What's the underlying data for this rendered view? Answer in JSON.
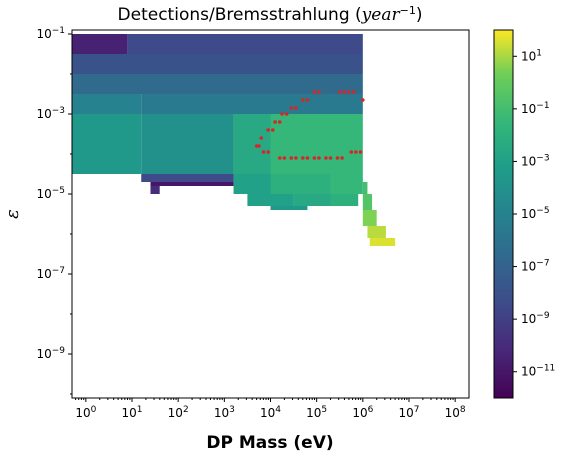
{
  "chart_data": {
    "type": "heatmap",
    "title": "Detections/Bremsstrahlung (",
    "title_math": "year",
    "title_sup": "−1",
    "title_close": ")",
    "xlabel": "DP Mass (eV)",
    "ylabel": "ε",
    "x_scale": "log",
    "y_scale": "log",
    "x_log_range": [
      -0.3,
      8.3
    ],
    "y_log_range": [
      -10.1,
      -0.9
    ],
    "x_ticks": [
      {
        "base": "10",
        "exp": "0"
      },
      {
        "base": "10",
        "exp": "1"
      },
      {
        "base": "10",
        "exp": "2"
      },
      {
        "base": "10",
        "exp": "3"
      },
      {
        "base": "10",
        "exp": "4"
      },
      {
        "base": "10",
        "exp": "5"
      },
      {
        "base": "10",
        "exp": "6"
      },
      {
        "base": "10",
        "exp": "7"
      },
      {
        "base": "10",
        "exp": "8"
      }
    ],
    "y_ticks": [
      {
        "base": "10",
        "exp": "−1"
      },
      {
        "base": "10",
        "exp": "−3"
      },
      {
        "base": "10",
        "exp": "−5"
      },
      {
        "base": "10",
        "exp": "−7"
      },
      {
        "base": "10",
        "exp": "−9"
      }
    ],
    "colorbar": {
      "colormap": "viridis",
      "log_range": [
        -12,
        2
      ],
      "ticks": [
        {
          "base": "10",
          "exp": "1"
        },
        {
          "base": "10",
          "exp": "−1"
        },
        {
          "base": "10",
          "exp": "−3"
        },
        {
          "base": "10",
          "exp": "−5"
        },
        {
          "base": "10",
          "exp": "−7"
        },
        {
          "base": "10",
          "exp": "−9"
        },
        {
          "base": "10",
          "exp": "−11"
        }
      ]
    },
    "heatmap_regions": [
      {
        "x": [
          -0.3,
          0.9
        ],
        "y": [
          -1.5,
          -1.0
        ],
        "log10_value": -10.5
      },
      {
        "x": [
          0.9,
          6.0
        ],
        "y": [
          -1.5,
          -1.0
        ],
        "log10_value": -8.5
      },
      {
        "x": [
          -0.3,
          6.0
        ],
        "y": [
          -2.0,
          -1.5
        ],
        "log10_value": -8.0
      },
      {
        "x": [
          -0.3,
          6.0
        ],
        "y": [
          -2.5,
          -2.0
        ],
        "log10_value": -6.5
      },
      {
        "x": [
          -0.3,
          1.2
        ],
        "y": [
          -3.0,
          -2.5
        ],
        "log10_value": -5.0
      },
      {
        "x": [
          1.2,
          6.0
        ],
        "y": [
          -3.0,
          -2.5
        ],
        "log10_value": -5.5
      },
      {
        "x": [
          -0.3,
          1.2
        ],
        "y": [
          -4.5,
          -3.0
        ],
        "log10_value": -3.5
      },
      {
        "x": [
          1.2,
          3.2
        ],
        "y": [
          -4.5,
          -3.0
        ],
        "log10_value": -4.0
      },
      {
        "x": [
          3.2,
          4.0
        ],
        "y": [
          -4.5,
          -3.0
        ],
        "log10_value": -2.5
      },
      {
        "x": [
          4.0,
          6.0
        ],
        "y": [
          -4.5,
          -3.0
        ],
        "log10_value": -1.5
      },
      {
        "x": [
          1.2,
          3.2
        ],
        "y": [
          -4.7,
          -4.5
        ],
        "log10_value": -8.5
      },
      {
        "x": [
          1.4,
          3.2
        ],
        "y": [
          -4.8,
          -4.7
        ],
        "log10_value": -11.0
      },
      {
        "x": [
          1.4,
          1.6
        ],
        "y": [
          -5.0,
          -4.8
        ],
        "log10_value": -10.0
      },
      {
        "x": [
          3.2,
          4.0
        ],
        "y": [
          -5.0,
          -4.5
        ],
        "log10_value": -3.0
      },
      {
        "x": [
          4.0,
          5.3
        ],
        "y": [
          -5.0,
          -4.5
        ],
        "log10_value": -2.0
      },
      {
        "x": [
          5.3,
          6.0
        ],
        "y": [
          -5.0,
          -4.5
        ],
        "log10_value": -1.5
      },
      {
        "x": [
          3.5,
          4.5
        ],
        "y": [
          -5.3,
          -5.0
        ],
        "log10_value": -3.0
      },
      {
        "x": [
          4.5,
          5.3
        ],
        "y": [
          -5.3,
          -5.0
        ],
        "log10_value": -2.5
      },
      {
        "x": [
          5.3,
          5.9
        ],
        "y": [
          -5.3,
          -5.0
        ],
        "log10_value": -2.0
      },
      {
        "x": [
          4.0,
          4.8
        ],
        "y": [
          -5.4,
          -5.3
        ],
        "log10_value": -3.5
      },
      {
        "x": [
          6.0,
          6.1
        ],
        "y": [
          -5.0,
          -4.7
        ],
        "log10_value": -1.0
      },
      {
        "x": [
          6.0,
          6.2
        ],
        "y": [
          -5.4,
          -5.0
        ],
        "log10_value": -0.5
      },
      {
        "x": [
          6.0,
          6.3
        ],
        "y": [
          -5.8,
          -5.4
        ],
        "log10_value": 0.5
      },
      {
        "x": [
          6.1,
          6.5
        ],
        "y": [
          -6.1,
          -5.8
        ],
        "log10_value": 1.2
      },
      {
        "x": [
          6.15,
          6.7
        ],
        "y": [
          -6.3,
          -6.1
        ],
        "log10_value": 1.6
      }
    ],
    "markers": {
      "color": "#d62728",
      "log10_points": [
        [
          3.7,
          -3.8
        ],
        [
          3.75,
          -3.8
        ],
        [
          3.8,
          -3.6
        ],
        [
          3.85,
          -3.95
        ],
        [
          3.95,
          -3.95
        ],
        [
          3.95,
          -3.4
        ],
        [
          4.05,
          -3.4
        ],
        [
          4.1,
          -3.2
        ],
        [
          4.2,
          -3.2
        ],
        [
          4.25,
          -3.0
        ],
        [
          4.35,
          -3.0
        ],
        [
          4.45,
          -2.85
        ],
        [
          4.55,
          -2.85
        ],
        [
          4.7,
          -2.65
        ],
        [
          4.8,
          -2.65
        ],
        [
          4.95,
          -2.45
        ],
        [
          5.05,
          -2.45
        ],
        [
          5.5,
          -2.45
        ],
        [
          5.6,
          -2.45
        ],
        [
          5.7,
          -2.45
        ],
        [
          5.8,
          -2.45
        ],
        [
          6.0,
          -2.65
        ],
        [
          4.2,
          -4.1
        ],
        [
          4.3,
          -4.1
        ],
        [
          4.45,
          -4.1
        ],
        [
          4.55,
          -4.1
        ],
        [
          4.7,
          -4.1
        ],
        [
          4.8,
          -4.1
        ],
        [
          4.95,
          -4.1
        ],
        [
          5.05,
          -4.1
        ],
        [
          5.2,
          -4.1
        ],
        [
          5.3,
          -4.1
        ],
        [
          5.45,
          -4.1
        ],
        [
          5.55,
          -4.1
        ],
        [
          5.75,
          -3.95
        ],
        [
          5.85,
          -3.95
        ],
        [
          5.95,
          -3.95
        ]
      ]
    }
  }
}
